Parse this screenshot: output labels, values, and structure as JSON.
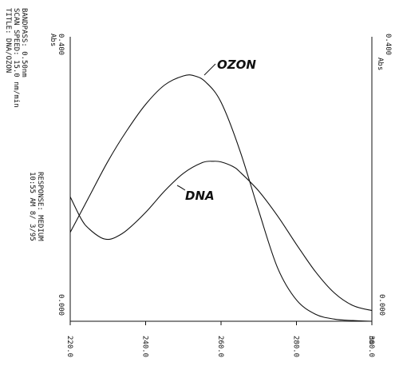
{
  "header": {
    "title": "TITLE: DNA/OZON",
    "scan_speed": "SCAN SPEED: 15.0 nm/min",
    "bandpass": "BANDPASS: 0.50nm",
    "timestamp": "10:55 AM 8/ 3/95",
    "response": "RESPONSE: MEDIUM"
  },
  "chart_data": {
    "type": "line",
    "xlabel": "nm",
    "ylabel": "Abs",
    "ylabel_right": "Abs",
    "xlim": [
      220,
      300
    ],
    "ylim": [
      0,
      0.4
    ],
    "x_ticks": [
      "220.0",
      "240.0",
      "260.0",
      "280.0",
      "300.0"
    ],
    "y_ticks_left": [
      "0.000",
      "0.400"
    ],
    "y_ticks_right": [
      "0.000",
      "0.400"
    ],
    "series": [
      {
        "name": "OZON",
        "x": [
          220,
          225,
          230,
          235,
          240,
          245,
          250,
          253,
          256,
          260,
          265,
          270,
          275,
          280,
          285,
          290,
          295,
          300
        ],
        "values": [
          0.125,
          0.175,
          0.225,
          0.268,
          0.305,
          0.332,
          0.345,
          0.345,
          0.336,
          0.308,
          0.24,
          0.155,
          0.075,
          0.03,
          0.01,
          0.003,
          0.001,
          0.0
        ]
      },
      {
        "name": "DNA",
        "x": [
          220,
          223,
          225,
          228,
          230,
          232,
          235,
          240,
          245,
          250,
          255,
          258,
          260,
          263,
          265,
          270,
          275,
          280,
          285,
          290,
          295,
          300
        ],
        "values": [
          0.175,
          0.143,
          0.13,
          0.118,
          0.115,
          0.118,
          0.128,
          0.153,
          0.183,
          0.208,
          0.223,
          0.225,
          0.224,
          0.218,
          0.21,
          0.183,
          0.148,
          0.108,
          0.07,
          0.04,
          0.022,
          0.015
        ]
      }
    ],
    "annotations": [
      "OZON",
      "DNA"
    ],
    "grid": false,
    "legend": "none"
  }
}
